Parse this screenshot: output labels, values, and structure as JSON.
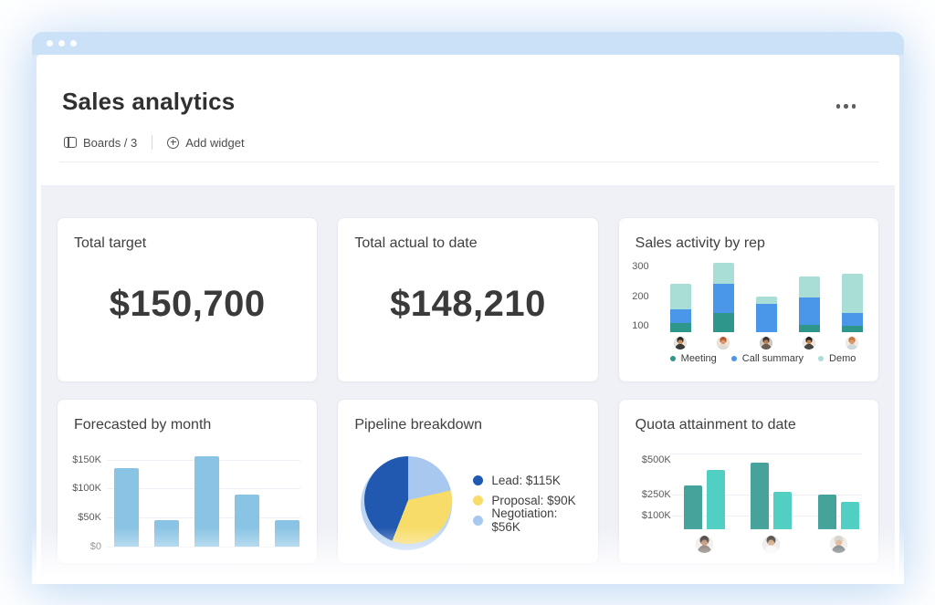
{
  "header": {
    "title": "Sales analytics",
    "boards_label": "Boards / 3",
    "add_widget_label": "Add widget",
    "more_menu_icon": "ellipsis-icon"
  },
  "kpis": [
    {
      "title": "Total target",
      "value": "$150,700"
    },
    {
      "title": "Total actual to date",
      "value": "$148,210"
    }
  ],
  "colors": {
    "titlebar": "#cbe1f7",
    "window_frame": "#d9e9fb",
    "content_bg": "#f0f1f7",
    "forecast_bar": "#8ac4e4",
    "meeting": "#2e968a",
    "call_summary": "#4a97ea",
    "demo": "#a8ded6",
    "lead": "#2158b0",
    "proposal": "#f7dc6a",
    "negotiation": "#a9c8f0",
    "quota_dark": "#46a39b",
    "quota_light": "#52cfc3"
  },
  "chart_data": [
    {
      "id": "sales_activity",
      "type": "bar",
      "subtype": "stacked",
      "title": "Sales activity by rep",
      "categories": [
        "rep-1",
        "rep-2",
        "rep-3",
        "rep-4",
        "rep-5"
      ],
      "series": [
        {
          "name": "Meeting",
          "color": "#2e968a",
          "values": [
            30,
            65,
            0,
            25,
            20
          ]
        },
        {
          "name": "Call summary",
          "color": "#4a97ea",
          "values": [
            45,
            95,
            95,
            90,
            45
          ]
        },
        {
          "name": "Demo",
          "color": "#a8ded6",
          "values": [
            85,
            70,
            25,
            70,
            130
          ]
        }
      ],
      "totals_read_on_axis": [
        240,
        310,
        200,
        265,
        275
      ],
      "axis": {
        "min": 80,
        "max": 320,
        "ticks": [
          100,
          200,
          300
        ]
      },
      "legend_position": "bottom",
      "grid": false
    },
    {
      "id": "forecast",
      "type": "bar",
      "title": "Forecasted by month",
      "categories": [
        "",
        "",
        "",
        "",
        ""
      ],
      "values": [
        135,
        45,
        155,
        90,
        45
      ],
      "unit": "K USD",
      "ylim": [
        0,
        165
      ],
      "axis_ticks": [
        {
          "v": 0,
          "label": "$0"
        },
        {
          "v": 50,
          "label": "$50K"
        },
        {
          "v": 100,
          "label": "$100K"
        },
        {
          "v": 150,
          "label": "$150K"
        }
      ],
      "grid": true
    },
    {
      "id": "pipeline",
      "type": "pie",
      "title": "Pipeline breakdown",
      "slices": [
        {
          "label": "Lead",
          "value": 115,
          "display": "Lead: $115K",
          "color": "#2158b0"
        },
        {
          "label": "Proposal",
          "value": 90,
          "display": "Proposal: $90K",
          "color": "#f7dc6a"
        },
        {
          "label": "Negotiation",
          "value": 56,
          "display": "Negotiation: $56K",
          "color": "#a9c8f0"
        }
      ],
      "clockwise_from_top": [
        "Negotiation",
        "Proposal",
        "Lead"
      ],
      "legend_position": "right"
    },
    {
      "id": "quota",
      "type": "bar",
      "subtype": "grouped",
      "title": "Quota attainment to date",
      "categories": [
        "rep-1",
        "rep-2",
        "rep-3"
      ],
      "series_colors": [
        "#46a39b",
        "#52cfc3"
      ],
      "groups": [
        {
          "values": [
            320,
            430
          ]
        },
        {
          "values": [
            480,
            270
          ]
        },
        {
          "values": [
            250,
            200
          ]
        }
      ],
      "unit": "K USD",
      "ylim": [
        0,
        550
      ],
      "axis_ticks": [
        {
          "v": 100,
          "label": "$100K"
        },
        {
          "v": 250,
          "label": "$250K"
        },
        {
          "v": 500,
          "label": "$500K"
        }
      ],
      "grid": true
    }
  ],
  "avatars": {
    "sales_activity": [
      {
        "bg": "#e9e4de",
        "hair": "#2d2a28",
        "skin": "#c89064",
        "shirt": "#3a3a3a"
      },
      {
        "bg": "#f3e3d3",
        "hair": "#b8552f",
        "skin": "#d99a6c",
        "shirt": "#e0dcd6"
      },
      {
        "bg": "#cfc9c4",
        "hair": "#3b2f2a",
        "skin": "#b97f52",
        "shirt": "#6b5d52"
      },
      {
        "bg": "#efe8e2",
        "hair": "#221f1f",
        "skin": "#c08552",
        "shirt": "#474747"
      },
      {
        "bg": "#f6ece4",
        "hair": "#c4763c",
        "skin": "#d89c6e",
        "shirt": "#cfd8dc"
      }
    ],
    "quota": [
      {
        "bg": "#efe9e4",
        "hair": "#2c2422",
        "skin": "#b07a4e",
        "shirt": "#5a4a42"
      },
      {
        "bg": "#e8e6e4",
        "hair": "#332b26",
        "skin": "#c79263",
        "shirt": "#f5f5f5"
      },
      {
        "bg": "#efe7df",
        "hair": "#cfc9c2",
        "skin": "#d7a077",
        "shirt": "#4a5258"
      }
    ]
  }
}
